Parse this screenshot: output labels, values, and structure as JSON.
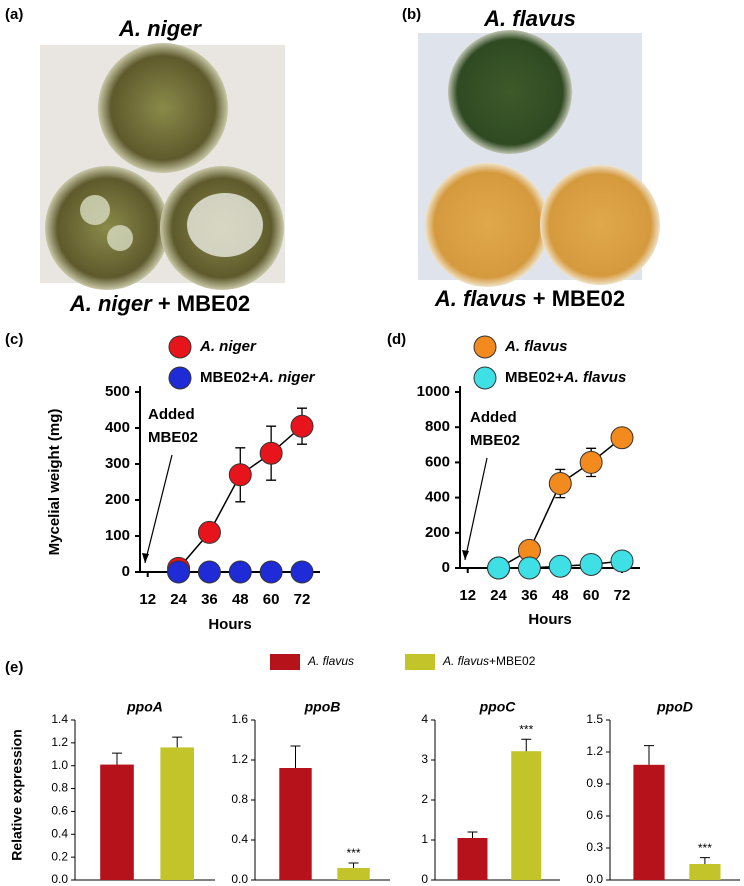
{
  "photos": [
    {
      "label": "(a)",
      "title": "A. niger",
      "caption": "A. niger + MBE02"
    },
    {
      "label": "(b)",
      "title": "A. flavus",
      "caption": "A. flavus + MBE02"
    }
  ],
  "figure_e": {
    "label": "(e)",
    "ylabel": "Relative expression"
  },
  "chart_data": [
    {
      "type": "line",
      "panel": "(c)",
      "xlabel": "Hours",
      "ylabel": "Mycelial weight (mg)",
      "annotation": [
        "Added",
        "MBE02"
      ],
      "x": [
        24,
        36,
        48,
        60,
        72
      ],
      "xlim": [
        9,
        79
      ],
      "xticks": [
        12,
        24,
        36,
        48,
        60,
        72
      ],
      "ylim": [
        0,
        500
      ],
      "yticks": [
        0,
        100,
        200,
        300,
        400,
        500
      ],
      "series": [
        {
          "name": "A. niger",
          "color": "#e8141b",
          "values": [
            10,
            110,
            270,
            330,
            405
          ],
          "errors": [
            0,
            0,
            75,
            75,
            50
          ]
        },
        {
          "name": "MBE02+A. niger",
          "color": "#1f2bd6",
          "values": [
            0,
            0,
            0,
            0,
            0
          ]
        }
      ]
    },
    {
      "type": "line",
      "panel": "(d)",
      "xlabel": "Hours",
      "annotation": [
        "Added",
        "MBE02"
      ],
      "x": [
        24,
        36,
        48,
        60,
        72
      ],
      "xlim": [
        9,
        79
      ],
      "xticks": [
        12,
        24,
        36,
        48,
        60,
        72
      ],
      "ylim": [
        0,
        1000
      ],
      "yticks": [
        0,
        200,
        400,
        600,
        800,
        1000
      ],
      "series": [
        {
          "name": "A. flavus",
          "color": "#f28a1e",
          "values": [
            0,
            100,
            480,
            600,
            740
          ],
          "errors": [
            0,
            0,
            80,
            80,
            0
          ]
        },
        {
          "name": "MBE02+A. flavus",
          "color": "#3ee0e6",
          "values": [
            0,
            0,
            10,
            20,
            40
          ]
        }
      ]
    },
    {
      "type": "bar",
      "title": "ppoA",
      "categories": [
        null
      ],
      "ylim": [
        0,
        1.4
      ],
      "yticks": [
        {
          "value": 0,
          "label": "0.0"
        },
        0.2,
        0.4,
        0.6,
        0.8,
        {
          "value": 1,
          "label": "1.0"
        },
        1.2,
        1.4
      ],
      "series": [
        {
          "name": "A. flavus",
          "color": "#b5121b",
          "values": [
            1.01
          ],
          "errors": [
            0.1
          ]
        },
        {
          "name": "A. flavus+MBE02",
          "color": "#c3c32a",
          "values": [
            1.16
          ],
          "errors": [
            0.09
          ]
        }
      ]
    },
    {
      "type": "bar",
      "title": "ppoB",
      "categories": [
        null
      ],
      "ylim": [
        0,
        1.6
      ],
      "yticks": [
        {
          "value": 0,
          "label": "0.0"
        },
        0.4,
        0.8,
        1.2,
        1.6
      ],
      "series": [
        {
          "name": "A. flavus",
          "color": "#b5121b",
          "values": [
            1.12
          ],
          "errors": [
            0.22
          ]
        },
        {
          "name": "A. flavus+MBE02",
          "color": "#c3c32a",
          "values": [
            0.12
          ],
          "errors": [
            0.05
          ],
          "annotation": "***"
        }
      ]
    },
    {
      "type": "bar",
      "title": "ppoC",
      "categories": [
        null
      ],
      "ylim": [
        0,
        4
      ],
      "yticks": [
        0,
        1,
        2,
        3,
        4
      ],
      "series": [
        {
          "name": "A. flavus",
          "color": "#b5121b",
          "values": [
            1.05
          ],
          "errors": [
            0.15
          ]
        },
        {
          "name": "A. flavus+MBE02",
          "color": "#c3c32a",
          "values": [
            3.22
          ],
          "errors": [
            0.3
          ],
          "annotation": "***"
        }
      ]
    },
    {
      "type": "bar",
      "title": "ppoD",
      "categories": [
        null
      ],
      "ylim": [
        0,
        1.5
      ],
      "yticks": [
        {
          "value": 0,
          "label": "0.0"
        },
        0.3,
        0.6,
        0.9,
        1.2,
        1.5
      ],
      "series": [
        {
          "name": "A. flavus",
          "color": "#b5121b",
          "values": [
            1.08
          ],
          "errors": [
            0.18
          ]
        },
        {
          "name": "A. flavus+MBE02",
          "color": "#c3c32a",
          "values": [
            0.15
          ],
          "errors": [
            0.06
          ],
          "annotation": "***"
        }
      ]
    }
  ]
}
